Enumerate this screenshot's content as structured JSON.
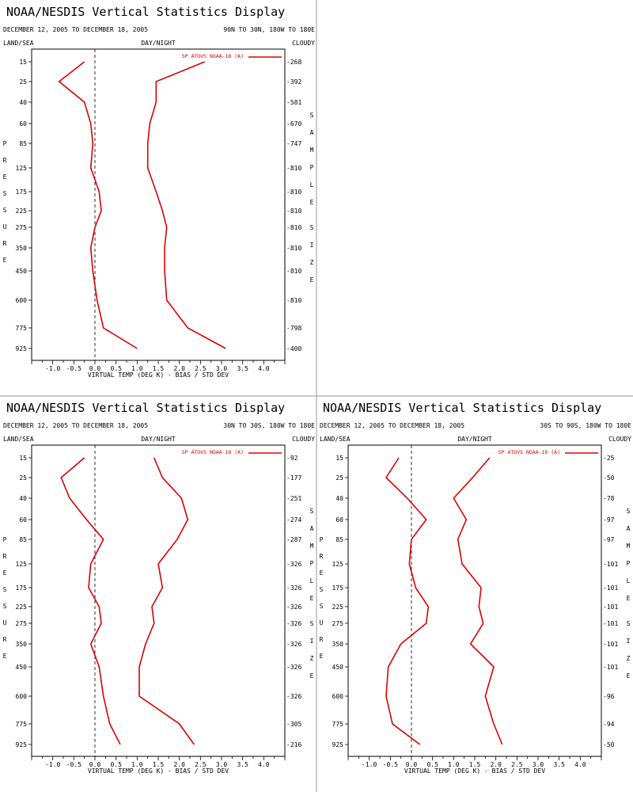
{
  "common": {
    "title": "NOAA/NESDIS Vertical Statistics Display",
    "date_range": "DECEMBER 12, 2005 TO DECEMBER 18, 2005",
    "land_sea": "LAND/SEA",
    "day_night": "DAY/NIGHT",
    "cloudy": "CLOUDY",
    "legend": "SP ATOVS NOAA-18 (A)",
    "xlabel": "VIRTUAL TEMP (DEG K) - BIAS / STD DEV",
    "left_vertical": "PRESSURE",
    "right_vertical": "SAMPLE SIZE",
    "line_color": "#dd0000",
    "zero_line": "dashed"
  },
  "chart_data": [
    {
      "type": "line",
      "region": "90N TO 30N, 180W TO 180E",
      "pressure_levels": [
        15,
        25,
        40,
        60,
        85,
        125,
        175,
        225,
        275,
        350,
        450,
        600,
        775,
        925
      ],
      "sample_size": [
        268,
        392,
        581,
        670,
        747,
        810,
        810,
        810,
        810,
        810,
        810,
        810,
        798,
        400
      ],
      "xlim": [
        -1.5,
        4.5
      ],
      "xticks": [
        "-1.0",
        "-0.5",
        "0.0",
        "0.5",
        "1.0",
        "1.5",
        "2.0",
        "2.5",
        "3.0",
        "3.5",
        "4.0"
      ],
      "series": [
        {
          "kind": "bias",
          "values": [
            -0.25,
            -0.85,
            -0.25,
            -0.1,
            -0.05,
            -0.1,
            0.1,
            0.15,
            0.0,
            -0.1,
            -0.05,
            0.05,
            0.2,
            1.0
          ]
        },
        {
          "kind": "std_dev",
          "values": [
            2.6,
            1.45,
            1.45,
            1.3,
            1.25,
            1.25,
            1.45,
            1.6,
            1.7,
            1.65,
            1.65,
            1.7,
            2.2,
            3.1
          ]
        }
      ]
    },
    {
      "type": "line",
      "region": "30N TO 30S, 180W TO 180E",
      "pressure_levels": [
        15,
        25,
        40,
        60,
        85,
        125,
        175,
        225,
        275,
        350,
        450,
        600,
        775,
        925
      ],
      "sample_size": [
        92,
        177,
        251,
        274,
        287,
        326,
        326,
        326,
        326,
        326,
        326,
        326,
        305,
        216
      ],
      "xlim": [
        -1.5,
        4.5
      ],
      "xticks": [
        "-1.0",
        "-0.5",
        "0.0",
        "0.5",
        "1.0",
        "1.5",
        "2.0",
        "2.5",
        "3.0",
        "3.5",
        "4.0"
      ],
      "series": [
        {
          "kind": "bias",
          "values": [
            -0.25,
            -0.8,
            -0.6,
            -0.2,
            0.2,
            -0.1,
            -0.15,
            0.1,
            0.15,
            -0.1,
            0.1,
            0.2,
            0.35,
            0.6
          ]
        },
        {
          "kind": "std_dev",
          "values": [
            1.4,
            1.6,
            2.05,
            2.2,
            1.95,
            1.5,
            1.6,
            1.35,
            1.4,
            1.2,
            1.05,
            1.05,
            2.0,
            2.35
          ]
        }
      ]
    },
    {
      "type": "line",
      "region": "30S TO 90S, 180W TO 180E",
      "pressure_levels": [
        15,
        25,
        40,
        60,
        85,
        125,
        175,
        225,
        275,
        350,
        450,
        600,
        775,
        925
      ],
      "sample_size": [
        25,
        50,
        78,
        97,
        97,
        101,
        101,
        101,
        101,
        101,
        101,
        96,
        94,
        50
      ],
      "xlim": [
        -1.5,
        4.5
      ],
      "xticks": [
        "-1.0",
        "-0.5",
        "0.0",
        "0.5",
        "1.0",
        "1.5",
        "2.0",
        "2.5",
        "3.0",
        "3.5",
        "4.0"
      ],
      "series": [
        {
          "kind": "bias",
          "values": [
            -0.3,
            -0.6,
            -0.1,
            0.35,
            0.0,
            -0.05,
            0.1,
            0.4,
            0.35,
            -0.25,
            -0.55,
            -0.6,
            -0.45,
            0.2
          ]
        },
        {
          "kind": "std_dev",
          "values": [
            1.85,
            1.45,
            1.0,
            1.3,
            1.1,
            1.2,
            1.65,
            1.6,
            1.7,
            1.4,
            1.95,
            1.75,
            1.95,
            2.15
          ]
        }
      ]
    }
  ]
}
